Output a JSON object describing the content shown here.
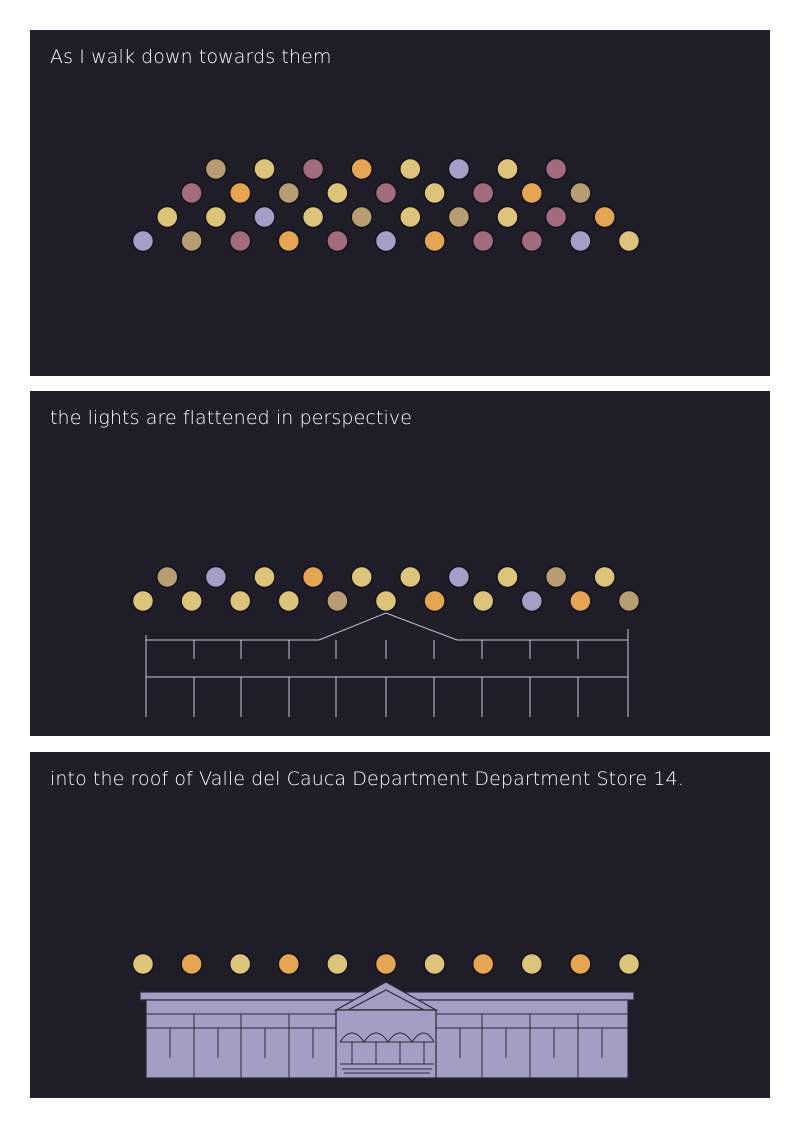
{
  "colors": {
    "background": "#1f1e28",
    "page": "#ffffff",
    "text": "#ffffff",
    "light_yellow": "#dcc47a",
    "light_orange": "#e6a552",
    "light_mauve": "#a36c7e",
    "light_lavender": "#a49fc6",
    "light_tan": "#b69e72",
    "building_fill": "#a29fc4",
    "building_line": "#c8c5d8"
  },
  "panels": [
    {
      "caption": "As I walk down towards them",
      "light_rows": [
        [
          "tan",
          "yellow",
          "mauve",
          "orange",
          "yellow",
          "lavender",
          "yellow",
          "mauve"
        ],
        [
          "mauve",
          "orange",
          "tan",
          "yellow",
          "mauve",
          "yellow",
          "mauve",
          "orange",
          "tan"
        ],
        [
          "yellow",
          "yellow",
          "lavender",
          "yellow",
          "tan",
          "yellow",
          "tan",
          "yellow",
          "mauve",
          "orange"
        ],
        [
          "lavender",
          "tan",
          "mauve",
          "orange",
          "mauve",
          "lavender",
          "orange",
          "mauve",
          "mauve",
          "lavender",
          "yellow"
        ]
      ]
    },
    {
      "caption": "the lights are flattened in perspective",
      "light_rows": [
        [
          "tan",
          "lavender",
          "yellow",
          "orange",
          "yellow",
          "yellow",
          "lavender",
          "yellow",
          "tan",
          "yellow"
        ],
        [
          "yellow",
          "yellow",
          "yellow",
          "yellow",
          "tan",
          "yellow",
          "orange",
          "yellow",
          "lavender",
          "orange",
          "tan"
        ]
      ]
    },
    {
      "caption": "into the roof of Valle del Cauca Department Department Store 14.",
      "light_rows": [
        [
          "yellow",
          "orange",
          "yellow",
          "orange",
          "yellow",
          "orange",
          "yellow",
          "orange",
          "yellow",
          "orange",
          "yellow"
        ]
      ]
    }
  ]
}
